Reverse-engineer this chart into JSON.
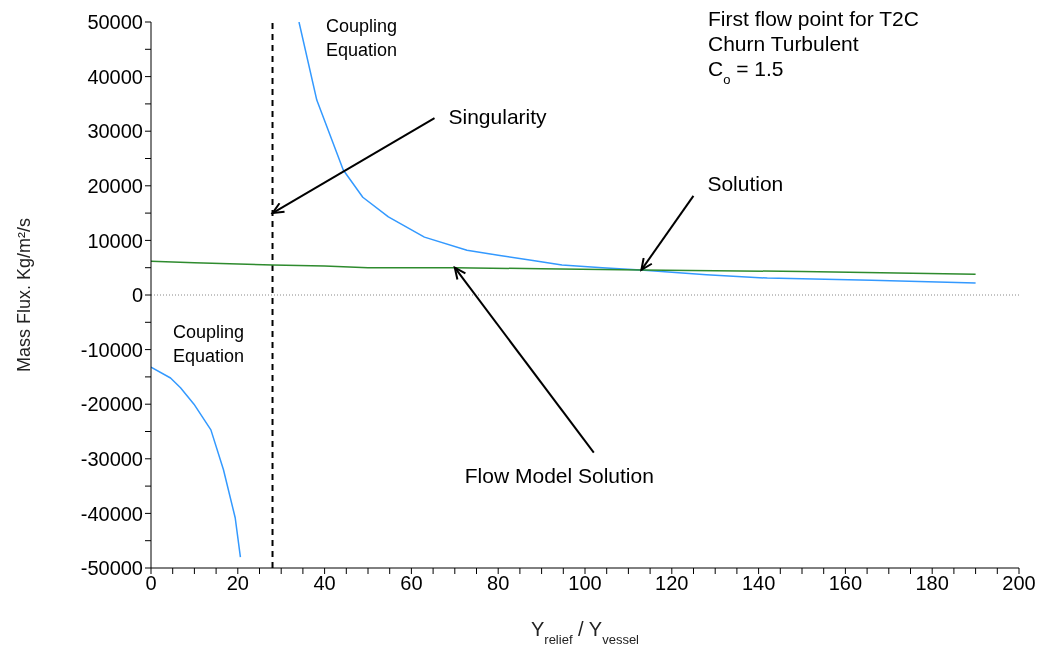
{
  "chart_data": {
    "type": "line",
    "xlabel": "Y$_{relief}$ / Y$_{vessel}$",
    "ylabel": "Mass Flux. Kg/m²/s",
    "xlim": [
      0,
      200
    ],
    "xticks": [
      0,
      {
        "value": 5,
        "label": null
      },
      20,
      {
        "value": 10,
        "label": null
      },
      {
        "value": 15,
        "label": null
      },
      {
        "value": 25,
        "label": null
      },
      {
        "value": 30,
        "label": null
      },
      {
        "value": 35,
        "label": null
      },
      40,
      {
        "value": 45,
        "label": null
      },
      {
        "value": 50,
        "label": null
      },
      {
        "value": 55,
        "label": null
      },
      60,
      {
        "value": 65,
        "label": null
      },
      {
        "value": 70,
        "label": null
      },
      {
        "value": 75,
        "label": null
      },
      80,
      {
        "value": 85,
        "label": null
      },
      {
        "value": 90,
        "label": null
      },
      {
        "value": 95,
        "label": null
      },
      100,
      {
        "value": 105,
        "label": null
      },
      {
        "value": 110,
        "label": null
      },
      {
        "value": 115,
        "label": null
      },
      120,
      {
        "value": 125,
        "label": null
      },
      {
        "value": 130,
        "label": null
      },
      {
        "value": 135,
        "label": null
      },
      140,
      {
        "value": 145,
        "label": null
      },
      {
        "value": 150,
        "label": null
      },
      {
        "value": 155,
        "label": null
      },
      160,
      {
        "value": 165,
        "label": null
      },
      {
        "value": 170,
        "label": null
      },
      {
        "value": 175,
        "label": null
      },
      180,
      {
        "value": 185,
        "label": null
      },
      {
        "value": 190,
        "label": null
      },
      {
        "value": 195,
        "label": null
      },
      200
    ],
    "ylim": [
      -50000,
      50000
    ],
    "yticks": [
      -50000,
      {
        "value": -45000,
        "label": null
      },
      -40000,
      {
        "value": -35000,
        "label": null
      },
      -30000,
      {
        "value": -25000,
        "label": null
      },
      -20000,
      {
        "value": -15000,
        "label": null
      },
      -10000,
      {
        "value": -5000,
        "label": null
      },
      0,
      {
        "value": 5000,
        "label": null
      },
      10000,
      {
        "value": 15000,
        "label": null
      },
      20000,
      {
        "value": 25000,
        "label": null
      },
      30000,
      {
        "value": 35000,
        "label": null
      },
      40000,
      {
        "value": 45000,
        "label": null
      },
      50000
    ],
    "marker": "none",
    "line_style": "solid",
    "series": [
      {
        "color": "#3399ff",
        "x": [
          0,
          4.5,
          6.8,
          9.9,
          13.8,
          16.7,
          19.4,
          20.6
        ],
        "values": [
          -13200,
          -15200,
          -17000,
          -20000,
          -24700,
          -32000,
          -40800,
          -48000
        ]
      },
      {
        "color": "#3399ff",
        "x": [
          34.1,
          38.2,
          44.3,
          48.8,
          54.7,
          63,
          72.8,
          80,
          88,
          94.7,
          104,
          112.8,
          128,
          142,
          166,
          190
        ],
        "values": [
          50000,
          35700,
          22900,
          17900,
          14300,
          10600,
          8200,
          7300,
          6300,
          5500,
          5000,
          4600,
          3700,
          3100,
          2700,
          2200
        ]
      },
      {
        "color": "#2e8b2e",
        "x": [
          0,
          10,
          28,
          40,
          50,
          70,
          90,
          113,
          150,
          190
        ],
        "values": [
          6200,
          5900,
          5500,
          5300,
          5000,
          5000,
          4800,
          4600,
          4300,
          3800
        ]
      }
    ],
    "ref_lines": [
      {
        "axis": "x",
        "value": 28,
        "color": "#000000",
        "line_style": "dashed"
      },
      {
        "axis": "y",
        "value": 0,
        "color": "#888888",
        "line_style": "dotted"
      }
    ],
    "annotations": [
      "Coupling Equation",
      "Coupling Equation",
      {
        "text": "Singularity",
        "x": 28,
        "y": 15000
      },
      {
        "text": "Solution",
        "x": 113,
        "y": 4600
      },
      {
        "text": "Flow Model Solution",
        "x": 70,
        "y": 5000
      },
      "First flow point for T2C",
      "Churn Turbulent",
      "C$_{o}$ = 1.5"
    ]
  }
}
